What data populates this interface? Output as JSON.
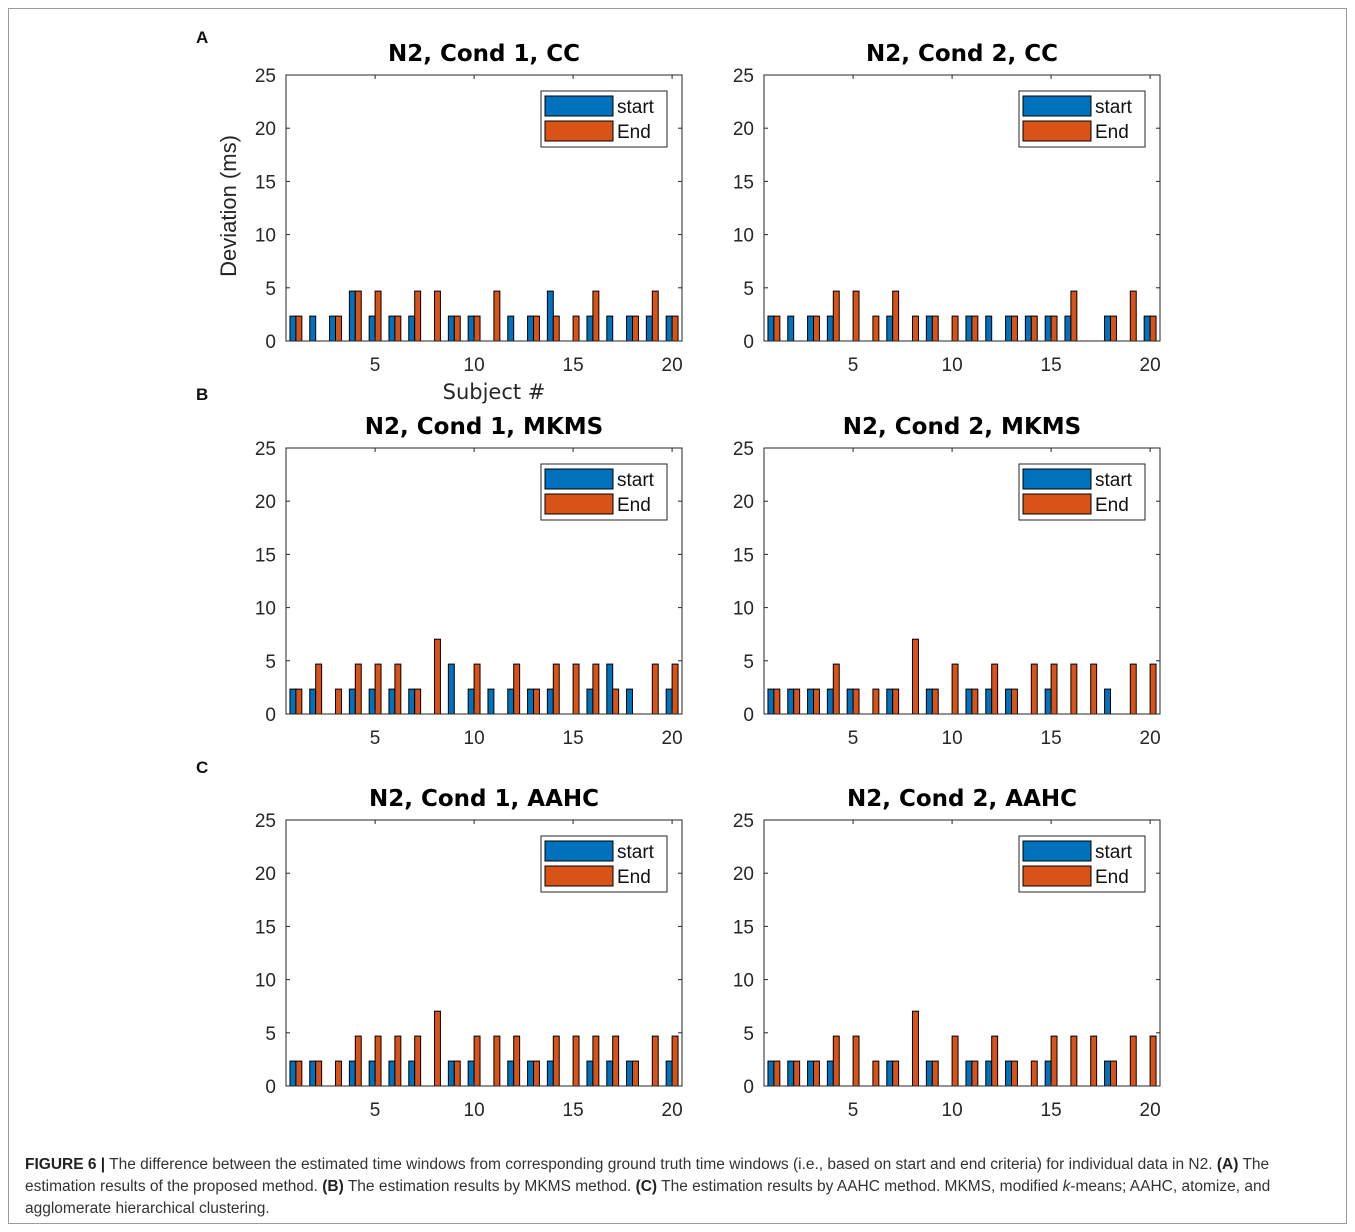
{
  "colors": {
    "start": "#0072BD",
    "end": "#D95319",
    "axis": "#262626",
    "frame": "#9a9a9a"
  },
  "panel_letters": [
    "A",
    "B",
    "C"
  ],
  "chart_data": [
    {
      "type": "bar",
      "panel": "A",
      "title": "N2, Cond 1, CC",
      "xlabel": "Subject #",
      "ylabel": "Deviation (ms)",
      "ylim": [
        0,
        25
      ],
      "yticks": [
        0,
        5,
        10,
        15,
        20,
        25
      ],
      "xticks": [
        5,
        10,
        15,
        20
      ],
      "legend_position": "top-right",
      "grid": false,
      "categories": [
        1,
        2,
        3,
        4,
        5,
        6,
        7,
        8,
        9,
        10,
        11,
        12,
        13,
        14,
        15,
        16,
        17,
        18,
        19,
        20
      ],
      "series": [
        {
          "name": "start",
          "values": [
            2.34,
            2.34,
            2.34,
            4.69,
            2.34,
            2.34,
            2.34,
            0,
            2.34,
            2.34,
            0,
            2.34,
            2.34,
            4.69,
            0,
            2.34,
            2.34,
            2.34,
            2.34,
            2.34
          ]
        },
        {
          "name": "End",
          "values": [
            2.34,
            0,
            2.34,
            4.69,
            4.69,
            2.34,
            4.69,
            4.69,
            2.34,
            2.34,
            4.69,
            0,
            2.34,
            2.34,
            2.34,
            4.69,
            0,
            2.34,
            4.69,
            2.34
          ]
        }
      ]
    },
    {
      "type": "bar",
      "panel": "A",
      "title": "N2, Cond 2, CC",
      "xlabel": "",
      "ylabel": "",
      "ylim": [
        0,
        25
      ],
      "yticks": [
        0,
        5,
        10,
        15,
        20,
        25
      ],
      "xticks": [
        5,
        10,
        15,
        20
      ],
      "legend_position": "top-right",
      "grid": false,
      "categories": [
        1,
        2,
        3,
        4,
        5,
        6,
        7,
        8,
        9,
        10,
        11,
        12,
        13,
        14,
        15,
        16,
        17,
        18,
        19,
        20
      ],
      "series": [
        {
          "name": "start",
          "values": [
            2.34,
            2.34,
            2.34,
            2.34,
            0,
            0,
            2.34,
            0,
            2.34,
            0,
            2.34,
            2.34,
            2.34,
            2.34,
            2.34,
            2.34,
            0,
            2.34,
            0,
            2.34
          ]
        },
        {
          "name": "End",
          "values": [
            2.34,
            0,
            2.34,
            4.69,
            4.69,
            2.34,
            4.69,
            2.34,
            2.34,
            2.34,
            2.34,
            0,
            2.34,
            2.34,
            2.34,
            4.69,
            0,
            2.34,
            4.69,
            2.34
          ]
        }
      ]
    },
    {
      "type": "bar",
      "panel": "B",
      "title": "N2, Cond 1, MKMS",
      "xlabel": "",
      "ylabel": "",
      "ylim": [
        0,
        25
      ],
      "yticks": [
        0,
        5,
        10,
        15,
        20,
        25
      ],
      "xticks": [
        5,
        10,
        15,
        20
      ],
      "legend_position": "top-right",
      "grid": false,
      "categories": [
        1,
        2,
        3,
        4,
        5,
        6,
        7,
        8,
        9,
        10,
        11,
        12,
        13,
        14,
        15,
        16,
        17,
        18,
        19,
        20
      ],
      "series": [
        {
          "name": "start",
          "values": [
            2.34,
            2.34,
            0,
            2.34,
            2.34,
            2.34,
            2.34,
            0,
            4.69,
            2.34,
            2.34,
            2.34,
            2.34,
            2.34,
            0,
            2.34,
            4.69,
            2.34,
            0,
            2.34
          ]
        },
        {
          "name": "End",
          "values": [
            2.34,
            4.69,
            2.34,
            4.69,
            4.69,
            4.69,
            2.34,
            7.03,
            0,
            4.69,
            0,
            4.69,
            2.34,
            4.69,
            4.69,
            4.69,
            2.34,
            0,
            4.69,
            4.69
          ]
        }
      ]
    },
    {
      "type": "bar",
      "panel": "B",
      "title": "N2, Cond 2, MKMS",
      "xlabel": "",
      "ylabel": "",
      "ylim": [
        0,
        25
      ],
      "yticks": [
        0,
        5,
        10,
        15,
        20,
        25
      ],
      "xticks": [
        5,
        10,
        15,
        20
      ],
      "legend_position": "top-right",
      "grid": false,
      "categories": [
        1,
        2,
        3,
        4,
        5,
        6,
        7,
        8,
        9,
        10,
        11,
        12,
        13,
        14,
        15,
        16,
        17,
        18,
        19,
        20
      ],
      "series": [
        {
          "name": "start",
          "values": [
            2.34,
            2.34,
            2.34,
            2.34,
            2.34,
            0,
            2.34,
            0,
            2.34,
            0,
            2.34,
            2.34,
            2.34,
            0,
            2.34,
            0,
            0,
            2.34,
            0,
            0
          ]
        },
        {
          "name": "End",
          "values": [
            2.34,
            2.34,
            2.34,
            4.69,
            2.34,
            2.34,
            2.34,
            7.03,
            2.34,
            4.69,
            2.34,
            4.69,
            2.34,
            4.69,
            4.69,
            4.69,
            4.69,
            0,
            4.69,
            4.69
          ]
        }
      ]
    },
    {
      "type": "bar",
      "panel": "C",
      "title": "N2, Cond 1, AAHC",
      "xlabel": "",
      "ylabel": "",
      "ylim": [
        0,
        25
      ],
      "yticks": [
        0,
        5,
        10,
        15,
        20,
        25
      ],
      "xticks": [
        5,
        10,
        15,
        20
      ],
      "legend_position": "top-right",
      "grid": false,
      "categories": [
        1,
        2,
        3,
        4,
        5,
        6,
        7,
        8,
        9,
        10,
        11,
        12,
        13,
        14,
        15,
        16,
        17,
        18,
        19,
        20
      ],
      "series": [
        {
          "name": "start",
          "values": [
            2.34,
            2.34,
            0,
            2.34,
            2.34,
            2.34,
            2.34,
            0,
            2.34,
            2.34,
            0,
            2.34,
            2.34,
            2.34,
            0,
            2.34,
            2.34,
            2.34,
            0,
            2.34
          ]
        },
        {
          "name": "End",
          "values": [
            2.34,
            2.34,
            2.34,
            4.69,
            4.69,
            4.69,
            4.69,
            7.03,
            2.34,
            4.69,
            4.69,
            4.69,
            2.34,
            4.69,
            4.69,
            4.69,
            4.69,
            2.34,
            4.69,
            4.69
          ]
        }
      ]
    },
    {
      "type": "bar",
      "panel": "C",
      "title": "N2, Cond 2, AAHC",
      "xlabel": "",
      "ylabel": "",
      "ylim": [
        0,
        25
      ],
      "yticks": [
        0,
        5,
        10,
        15,
        20,
        25
      ],
      "xticks": [
        5,
        10,
        15,
        20
      ],
      "legend_position": "top-right",
      "grid": false,
      "categories": [
        1,
        2,
        3,
        4,
        5,
        6,
        7,
        8,
        9,
        10,
        11,
        12,
        13,
        14,
        15,
        16,
        17,
        18,
        19,
        20
      ],
      "series": [
        {
          "name": "start",
          "values": [
            2.34,
            2.34,
            2.34,
            2.34,
            0,
            0,
            2.34,
            0,
            2.34,
            0,
            2.34,
            2.34,
            2.34,
            0,
            2.34,
            0,
            0,
            2.34,
            0,
            0
          ]
        },
        {
          "name": "End",
          "values": [
            2.34,
            2.34,
            2.34,
            4.69,
            4.69,
            2.34,
            2.34,
            7.03,
            2.34,
            4.69,
            2.34,
            4.69,
            2.34,
            2.34,
            4.69,
            4.69,
            4.69,
            2.34,
            4.69,
            4.69
          ]
        }
      ]
    }
  ],
  "caption": {
    "label": "FIGURE 6 |",
    "intro": "The difference between the estimated time windows from corresponding ground truth time windows (i.e., based on start and end criteria) for individual data in N2.",
    "a_tag": "(A)",
    "a_text": "The estimation results of the proposed method.",
    "b_tag": "(B)",
    "b_text": "The estimation results by MKMS method.",
    "c_tag": "(C)",
    "c_text": "The estimation results by AAHC method. MKMS, modified",
    "k": "k",
    "end_text": "-means; AAHC, atomize, and agglomerate hierarchical clustering."
  }
}
